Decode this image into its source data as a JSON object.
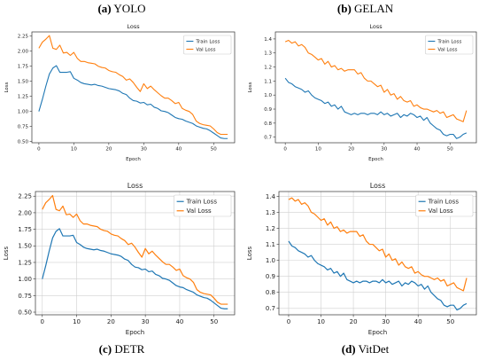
{
  "panels": [
    {
      "label": "(a)",
      "name": "YOLO"
    },
    {
      "label": "(b)",
      "name": "GELAN"
    },
    {
      "label": "(c)",
      "name": "DETR"
    },
    {
      "label": "(d)",
      "name": "VitDet"
    }
  ],
  "colors": {
    "train": "#1f77b4",
    "val": "#ff7f0e",
    "grid": "#d0d0d0",
    "axis": "#333333"
  },
  "chart_data": [
    {
      "type": "line",
      "title": "Loss",
      "xlabel": "Epoch",
      "ylabel": "Loss",
      "xlim": [
        -2,
        56
      ],
      "ylim": [
        0.48,
        2.32
      ],
      "xticks": [
        0,
        10,
        20,
        30,
        40,
        50
      ],
      "yticks": [
        0.5,
        0.75,
        1.0,
        1.25,
        1.5,
        1.75,
        2.0,
        2.25
      ],
      "ytick_labels": [
        "0.50",
        "0.75",
        "1.00",
        "1.25",
        "1.50",
        "1.75",
        "2.00",
        "2.25"
      ],
      "grid": false,
      "legend": "top-right",
      "x": [
        0,
        1,
        2,
        3,
        4,
        5,
        6,
        7,
        8,
        9,
        10,
        11,
        12,
        13,
        14,
        15,
        16,
        17,
        18,
        19,
        20,
        21,
        22,
        23,
        24,
        25,
        26,
        27,
        28,
        29,
        30,
        31,
        32,
        33,
        34,
        35,
        36,
        37,
        38,
        39,
        40,
        41,
        42,
        43,
        44,
        45,
        46,
        47,
        48,
        49,
        50,
        51,
        52,
        53,
        54
      ],
      "series": [
        {
          "name": "Train Loss",
          "values": [
            1.0,
            1.2,
            1.42,
            1.62,
            1.72,
            1.76,
            1.65,
            1.65,
            1.65,
            1.66,
            1.55,
            1.52,
            1.48,
            1.46,
            1.45,
            1.44,
            1.45,
            1.43,
            1.42,
            1.4,
            1.38,
            1.37,
            1.36,
            1.34,
            1.3,
            1.28,
            1.22,
            1.18,
            1.17,
            1.14,
            1.15,
            1.11,
            1.12,
            1.07,
            1.05,
            1.01,
            1.0,
            0.98,
            0.94,
            0.9,
            0.88,
            0.87,
            0.84,
            0.82,
            0.8,
            0.76,
            0.74,
            0.72,
            0.71,
            0.68,
            0.64,
            0.6,
            0.56,
            0.55,
            0.55
          ]
        },
        {
          "name": "Val Loss",
          "values": [
            2.05,
            2.15,
            2.2,
            2.26,
            2.05,
            2.03,
            2.1,
            1.97,
            1.98,
            1.93,
            1.98,
            1.88,
            1.83,
            1.83,
            1.81,
            1.8,
            1.79,
            1.75,
            1.73,
            1.72,
            1.68,
            1.66,
            1.65,
            1.61,
            1.58,
            1.52,
            1.54,
            1.48,
            1.4,
            1.33,
            1.46,
            1.38,
            1.42,
            1.36,
            1.31,
            1.26,
            1.22,
            1.22,
            1.18,
            1.13,
            1.15,
            1.05,
            1.02,
            1.0,
            0.95,
            0.84,
            0.8,
            0.78,
            0.77,
            0.76,
            0.71,
            0.65,
            0.62,
            0.62,
            0.62
          ]
        }
      ]
    },
    {
      "type": "line",
      "title": "Loss",
      "xlabel": "Epoch",
      "ylabel": "Loss",
      "xlim": [
        -3,
        58
      ],
      "ylim": [
        0.66,
        1.45
      ],
      "xticks": [
        0,
        10,
        20,
        30,
        40,
        50
      ],
      "yticks": [
        0.7,
        0.8,
        0.9,
        1.0,
        1.1,
        1.2,
        1.3,
        1.4
      ],
      "ytick_labels": [
        "0.7",
        "0.8",
        "0.9",
        "1.0",
        "1.1",
        "1.2",
        "1.3",
        "1.4"
      ],
      "grid": false,
      "legend": "top-right",
      "x": [
        0,
        1,
        2,
        3,
        4,
        5,
        6,
        7,
        8,
        9,
        10,
        11,
        12,
        13,
        14,
        15,
        16,
        17,
        18,
        19,
        20,
        21,
        22,
        23,
        24,
        25,
        26,
        27,
        28,
        29,
        30,
        31,
        32,
        33,
        34,
        35,
        36,
        37,
        38,
        39,
        40,
        41,
        42,
        43,
        44,
        45,
        46,
        47,
        48,
        49,
        50,
        51,
        52,
        53,
        54,
        55
      ],
      "series": [
        {
          "name": "Train Loss",
          "values": [
            1.12,
            1.09,
            1.08,
            1.06,
            1.05,
            1.04,
            1.02,
            1.03,
            1.0,
            0.98,
            0.97,
            0.96,
            0.94,
            0.95,
            0.92,
            0.93,
            0.9,
            0.92,
            0.88,
            0.87,
            0.86,
            0.87,
            0.86,
            0.87,
            0.87,
            0.86,
            0.87,
            0.87,
            0.86,
            0.88,
            0.86,
            0.87,
            0.85,
            0.86,
            0.87,
            0.84,
            0.86,
            0.85,
            0.87,
            0.86,
            0.84,
            0.85,
            0.82,
            0.84,
            0.8,
            0.78,
            0.76,
            0.75,
            0.72,
            0.71,
            0.72,
            0.72,
            0.69,
            0.7,
            0.72,
            0.73
          ]
        },
        {
          "name": "Val Loss",
          "values": [
            1.38,
            1.39,
            1.37,
            1.38,
            1.35,
            1.36,
            1.34,
            1.3,
            1.29,
            1.27,
            1.25,
            1.26,
            1.22,
            1.24,
            1.2,
            1.21,
            1.18,
            1.19,
            1.17,
            1.18,
            1.18,
            1.18,
            1.15,
            1.16,
            1.12,
            1.1,
            1.1,
            1.08,
            1.06,
            1.07,
            1.02,
            1.04,
            1.0,
            1.01,
            0.97,
            0.99,
            0.96,
            0.95,
            0.96,
            0.92,
            0.93,
            0.91,
            0.9,
            0.9,
            0.89,
            0.88,
            0.89,
            0.87,
            0.88,
            0.84,
            0.85,
            0.86,
            0.83,
            0.82,
            0.81,
            0.89
          ]
        }
      ]
    },
    {
      "type": "line",
      "title": "Loss",
      "xlabel": "Epoch",
      "ylabel": "Loss",
      "xlim": [
        -2,
        56
      ],
      "ylim": [
        0.46,
        2.32
      ],
      "xticks": [
        0,
        10,
        20,
        30,
        40,
        50
      ],
      "yticks": [
        0.5,
        0.75,
        1.0,
        1.25,
        1.5,
        1.75,
        2.0,
        2.25
      ],
      "ytick_labels": [
        "0.50",
        "0.75",
        "1.00",
        "1.25",
        "1.50",
        "1.75",
        "2.00",
        "2.25"
      ],
      "grid": true,
      "legend": "top-right",
      "x": [
        0,
        1,
        2,
        3,
        4,
        5,
        6,
        7,
        8,
        9,
        10,
        11,
        12,
        13,
        14,
        15,
        16,
        17,
        18,
        19,
        20,
        21,
        22,
        23,
        24,
        25,
        26,
        27,
        28,
        29,
        30,
        31,
        32,
        33,
        34,
        35,
        36,
        37,
        38,
        39,
        40,
        41,
        42,
        43,
        44,
        45,
        46,
        47,
        48,
        49,
        50,
        51,
        52,
        53,
        54
      ],
      "series": [
        {
          "name": "Train Loss",
          "values": [
            1.0,
            1.2,
            1.42,
            1.62,
            1.72,
            1.76,
            1.65,
            1.65,
            1.65,
            1.66,
            1.55,
            1.52,
            1.48,
            1.46,
            1.45,
            1.44,
            1.45,
            1.43,
            1.42,
            1.4,
            1.38,
            1.37,
            1.36,
            1.34,
            1.3,
            1.28,
            1.22,
            1.18,
            1.17,
            1.14,
            1.15,
            1.11,
            1.12,
            1.07,
            1.05,
            1.01,
            1.0,
            0.98,
            0.94,
            0.9,
            0.88,
            0.87,
            0.84,
            0.82,
            0.8,
            0.76,
            0.74,
            0.72,
            0.71,
            0.68,
            0.64,
            0.6,
            0.56,
            0.55,
            0.55
          ]
        },
        {
          "name": "Val Loss",
          "values": [
            2.05,
            2.15,
            2.2,
            2.26,
            2.05,
            2.03,
            2.1,
            1.97,
            1.98,
            1.93,
            1.98,
            1.88,
            1.83,
            1.83,
            1.81,
            1.8,
            1.79,
            1.75,
            1.73,
            1.72,
            1.68,
            1.66,
            1.65,
            1.61,
            1.58,
            1.52,
            1.54,
            1.48,
            1.4,
            1.33,
            1.46,
            1.38,
            1.42,
            1.36,
            1.31,
            1.26,
            1.22,
            1.22,
            1.18,
            1.13,
            1.15,
            1.05,
            1.02,
            1.0,
            0.95,
            0.84,
            0.8,
            0.78,
            0.77,
            0.76,
            0.71,
            0.65,
            0.62,
            0.62,
            0.62
          ]
        }
      ]
    },
    {
      "type": "line",
      "title": "Loss",
      "xlabel": "Epoch",
      "ylabel": "Loss",
      "xlim": [
        -3,
        58
      ],
      "ylim": [
        0.66,
        1.43
      ],
      "xticks": [
        0,
        10,
        20,
        30,
        40,
        50
      ],
      "yticks": [
        0.7,
        0.8,
        0.9,
        1.0,
        1.1,
        1.2,
        1.3,
        1.4
      ],
      "ytick_labels": [
        "0.7",
        "0.8",
        "0.9",
        "1.0",
        "1.1",
        "1.2",
        "1.3",
        "1.4"
      ],
      "grid": true,
      "legend": "top-right",
      "x": [
        0,
        1,
        2,
        3,
        4,
        5,
        6,
        7,
        8,
        9,
        10,
        11,
        12,
        13,
        14,
        15,
        16,
        17,
        18,
        19,
        20,
        21,
        22,
        23,
        24,
        25,
        26,
        27,
        28,
        29,
        30,
        31,
        32,
        33,
        34,
        35,
        36,
        37,
        38,
        39,
        40,
        41,
        42,
        43,
        44,
        45,
        46,
        47,
        48,
        49,
        50,
        51,
        52,
        53,
        54,
        55
      ],
      "series": [
        {
          "name": "Train Loss",
          "values": [
            1.12,
            1.09,
            1.08,
            1.06,
            1.05,
            1.04,
            1.02,
            1.03,
            1.0,
            0.98,
            0.97,
            0.96,
            0.94,
            0.95,
            0.92,
            0.93,
            0.9,
            0.92,
            0.88,
            0.87,
            0.86,
            0.87,
            0.86,
            0.87,
            0.87,
            0.86,
            0.87,
            0.87,
            0.86,
            0.88,
            0.86,
            0.87,
            0.85,
            0.86,
            0.87,
            0.84,
            0.86,
            0.85,
            0.87,
            0.86,
            0.84,
            0.85,
            0.82,
            0.84,
            0.8,
            0.78,
            0.76,
            0.75,
            0.72,
            0.71,
            0.72,
            0.72,
            0.69,
            0.7,
            0.72,
            0.73
          ]
        },
        {
          "name": "Val Loss",
          "values": [
            1.38,
            1.39,
            1.37,
            1.38,
            1.35,
            1.36,
            1.34,
            1.3,
            1.29,
            1.27,
            1.25,
            1.26,
            1.22,
            1.24,
            1.2,
            1.21,
            1.18,
            1.19,
            1.17,
            1.18,
            1.18,
            1.18,
            1.15,
            1.16,
            1.12,
            1.1,
            1.1,
            1.08,
            1.06,
            1.07,
            1.02,
            1.04,
            1.0,
            1.01,
            0.97,
            0.99,
            0.96,
            0.95,
            0.96,
            0.92,
            0.93,
            0.91,
            0.9,
            0.9,
            0.89,
            0.88,
            0.89,
            0.87,
            0.88,
            0.84,
            0.85,
            0.86,
            0.83,
            0.82,
            0.81,
            0.89
          ]
        }
      ]
    }
  ]
}
